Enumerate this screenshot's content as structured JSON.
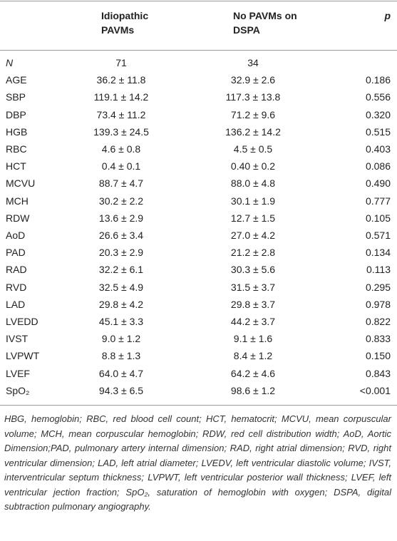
{
  "table": {
    "header": [
      "Idiopathic PAVMs",
      "No PAVMs on DSPA",
      "p"
    ],
    "rows": [
      [
        "N",
        "71",
        "34",
        ""
      ],
      [
        "AGE",
        "36.2 ± 11.8",
        "32.9 ± 2.6",
        "0.186"
      ],
      [
        "SBP",
        "119.1 ± 14.2",
        "117.3 ± 13.8",
        "0.556"
      ],
      [
        "DBP",
        "73.4 ± 11.2",
        "71.2 ± 9.6",
        "0.320"
      ],
      [
        "HGB",
        "139.3 ± 24.5",
        "136.2 ± 14.2",
        "0.515"
      ],
      [
        "RBC",
        "4.6 ± 0.8",
        "4.5 ± 0.5",
        "0.403"
      ],
      [
        "HCT",
        "0.4 ± 0.1",
        "0.40 ± 0.2",
        "0.086"
      ],
      [
        "MCVU",
        "88.7 ± 4.7",
        "88.0 ± 4.8",
        "0.490"
      ],
      [
        "MCH",
        "30.2 ± 2.2",
        "30.1 ± 1.9",
        "0.777"
      ],
      [
        "RDW",
        "13.6 ± 2.9",
        "12.7 ± 1.5",
        "0.105"
      ],
      [
        "AoD",
        "26.6 ± 3.4",
        "27.0 ± 4.2",
        "0.571"
      ],
      [
        "PAD",
        "20.3 ± 2.9",
        "21.2 ± 2.8",
        "0.134"
      ],
      [
        "RAD",
        "32.2 ± 6.1",
        "30.3 ± 5.6",
        "0.113"
      ],
      [
        "RVD",
        "32.5 ± 4.9",
        "31.5 ± 3.7",
        "0.295"
      ],
      [
        "LAD",
        "29.8 ± 4.2",
        "29.8 ± 3.7",
        "0.978"
      ],
      [
        "LVEDD",
        "45.1 ± 3.3",
        "44.2 ± 3.7",
        "0.822"
      ],
      [
        "IVST",
        "9.0 ± 1.2",
        "9.1 ± 1.6",
        "0.833"
      ],
      [
        "LVPWT",
        "8.8 ± 1.3",
        "8.4 ± 1.2",
        "0.150"
      ],
      [
        "LVEF",
        "64.0 ± 4.7",
        "64.2 ± 4.6",
        "0.843"
      ],
      [
        "SpO₂",
        "94.3 ± 6.5",
        "98.6 ± 1.2",
        "<0.001"
      ]
    ]
  },
  "note": "HBG, hemoglobin; RBC, red blood cell count; HCT, hematocrit; MCVU, mean corpuscular volume; MCH, mean corpuscular hemoglobin; RDW, red cell distribution width; AoD, Aortic Dimension;PAD, pulmonary artery internal dimension; RAD, right atrial dimension; RVD, right ventricular dimension; LAD, left atrial diameter; LVEDV, left ventricular diastolic volume; IVST, interventricular septum thickness; LVPWT, left ventricular posterior wall thickness; LVEF, left ventricular jection fraction; SpO₂, saturation of hemoglobin with oxygen; DSPA, digital subtraction pulmonary angiography."
}
